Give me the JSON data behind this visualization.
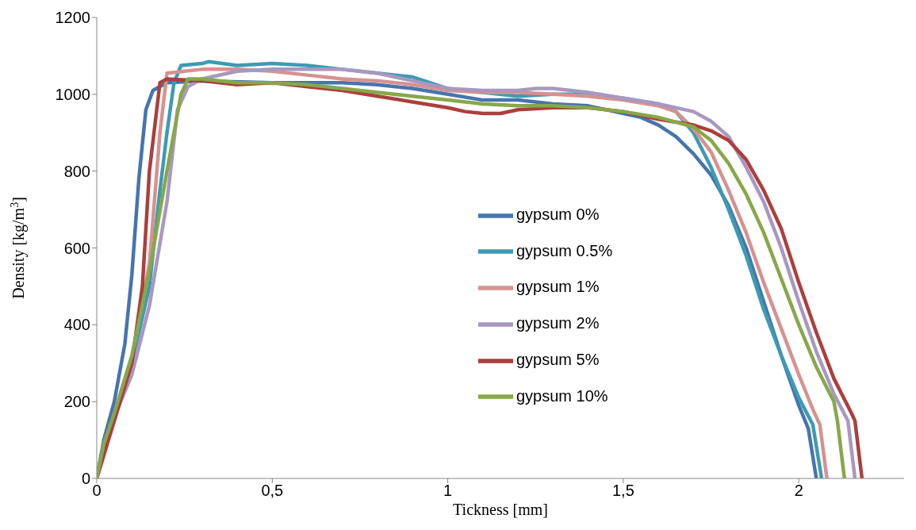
{
  "chart_data": {
    "type": "line",
    "xlabel": "Tickness [mm]",
    "ylabel": "Density [kg/m$^{3}$]",
    "xlim": [
      0,
      2.3
    ],
    "ylim": [
      0,
      1200
    ],
    "xticks": [
      {
        "value": 0,
        "label": "0"
      },
      {
        "value": 0.5,
        "label": "0,5"
      },
      {
        "value": 1,
        "label": "1"
      },
      {
        "value": 1.5,
        "label": "1,5"
      },
      {
        "value": 2,
        "label": "2"
      }
    ],
    "yticks": [
      0,
      200,
      400,
      600,
      800,
      1000,
      1200
    ],
    "grid": false,
    "legend": "center",
    "marker": "none",
    "line_style": "solid",
    "series": [
      {
        "name": "gypsum 0%",
        "color": "#4674b0",
        "x": [
          0,
          0.02,
          0.05,
          0.08,
          0.1,
          0.12,
          0.14,
          0.16,
          0.2,
          0.3,
          0.5,
          0.7,
          0.8,
          0.9,
          1.0,
          1.1,
          1.2,
          1.3,
          1.4,
          1.5,
          1.55,
          1.6,
          1.65,
          1.7,
          1.75,
          1.8,
          1.85,
          1.9,
          1.95,
          2.0,
          2.027,
          2.05
        ],
        "values": [
          0,
          100,
          200,
          350,
          530,
          780,
          960,
          1010,
          1030,
          1035,
          1030,
          1030,
          1025,
          1015,
          1000,
          985,
          985,
          975,
          970,
          950,
          940,
          920,
          890,
          845,
          790,
          710,
          600,
          460,
          320,
          190,
          130,
          0
        ]
      },
      {
        "name": "gypsum 0.5%",
        "color": "#3c9bb3",
        "x": [
          0,
          0.02,
          0.05,
          0.1,
          0.15,
          0.18,
          0.2,
          0.22,
          0.24,
          0.3,
          0.32,
          0.4,
          0.5,
          0.6,
          0.7,
          0.8,
          0.9,
          1.0,
          1.1,
          1.2,
          1.3,
          1.4,
          1.5,
          1.6,
          1.65,
          1.7,
          1.75,
          1.8,
          1.85,
          1.9,
          1.95,
          2.0,
          2.04,
          2.065
        ],
        "values": [
          0,
          90,
          170,
          300,
          500,
          750,
          900,
          1030,
          1075,
          1080,
          1085,
          1075,
          1080,
          1075,
          1065,
          1055,
          1045,
          1015,
          1005,
          995,
          1000,
          1000,
          990,
          975,
          955,
          900,
          810,
          700,
          580,
          440,
          320,
          210,
          140,
          0
        ]
      },
      {
        "name": "gypsum 1%",
        "color": "#d69290",
        "x": [
          0,
          0.05,
          0.1,
          0.15,
          0.18,
          0.2,
          0.25,
          0.3,
          0.4,
          0.5,
          0.6,
          0.7,
          0.8,
          0.9,
          1.0,
          1.1,
          1.2,
          1.3,
          1.4,
          1.5,
          1.6,
          1.65,
          1.7,
          1.75,
          1.8,
          1.85,
          1.9,
          1.95,
          2.0,
          2.04,
          2.06,
          2.08
        ],
        "values": [
          0,
          160,
          310,
          560,
          900,
          1055,
          1060,
          1065,
          1065,
          1060,
          1050,
          1040,
          1035,
          1025,
          1010,
          1005,
          1005,
          1000,
          995,
          985,
          970,
          955,
          910,
          850,
          750,
          640,
          510,
          390,
          270,
          180,
          140,
          0
        ]
      },
      {
        "name": "gypsum 2%",
        "color": "#a898c1",
        "x": [
          0,
          0.05,
          0.1,
          0.15,
          0.2,
          0.23,
          0.26,
          0.3,
          0.4,
          0.5,
          0.6,
          0.7,
          0.8,
          0.9,
          1.0,
          1.1,
          1.2,
          1.25,
          1.3,
          1.4,
          1.5,
          1.6,
          1.7,
          1.75,
          1.8,
          1.85,
          1.9,
          1.95,
          2.0,
          2.05,
          2.1,
          2.14,
          2.16
        ],
        "values": [
          0,
          160,
          270,
          450,
          720,
          960,
          1020,
          1040,
          1060,
          1065,
          1065,
          1065,
          1055,
          1035,
          1015,
          1010,
          1010,
          1015,
          1015,
          1005,
          990,
          975,
          955,
          930,
          890,
          810,
          720,
          600,
          460,
          330,
          220,
          150,
          0
        ]
      },
      {
        "name": "gypsum 5%",
        "color": "#ac3f3c",
        "x": [
          0,
          0.05,
          0.1,
          0.13,
          0.15,
          0.18,
          0.2,
          0.3,
          0.4,
          0.5,
          0.6,
          0.7,
          0.8,
          0.9,
          1.0,
          1.05,
          1.1,
          1.15,
          1.2,
          1.3,
          1.4,
          1.5,
          1.6,
          1.7,
          1.75,
          1.8,
          1.85,
          1.9,
          1.95,
          2.0,
          2.05,
          2.1,
          2.15,
          2.16,
          2.18
        ],
        "values": [
          0,
          150,
          300,
          500,
          800,
          1030,
          1040,
          1035,
          1025,
          1030,
          1020,
          1010,
          995,
          980,
          965,
          955,
          950,
          950,
          960,
          965,
          965,
          955,
          935,
          920,
          905,
          880,
          830,
          750,
          650,
          510,
          380,
          260,
          170,
          150,
          0
        ]
      },
      {
        "name": "gypsum 10%",
        "color": "#86a84a",
        "x": [
          0,
          0.02,
          0.05,
          0.1,
          0.15,
          0.2,
          0.24,
          0.26,
          0.3,
          0.4,
          0.5,
          0.6,
          0.7,
          0.8,
          0.9,
          1.0,
          1.1,
          1.2,
          1.3,
          1.4,
          1.5,
          1.6,
          1.7,
          1.75,
          1.8,
          1.85,
          1.9,
          1.95,
          2.0,
          2.05,
          2.1,
          2.11,
          2.13
        ],
        "values": [
          0,
          90,
          170,
          320,
          540,
          800,
          1000,
          1040,
          1040,
          1030,
          1030,
          1025,
          1015,
          1005,
          995,
          985,
          975,
          970,
          970,
          965,
          955,
          940,
          915,
          880,
          820,
          740,
          640,
          520,
          400,
          290,
          200,
          150,
          0
        ]
      }
    ]
  }
}
